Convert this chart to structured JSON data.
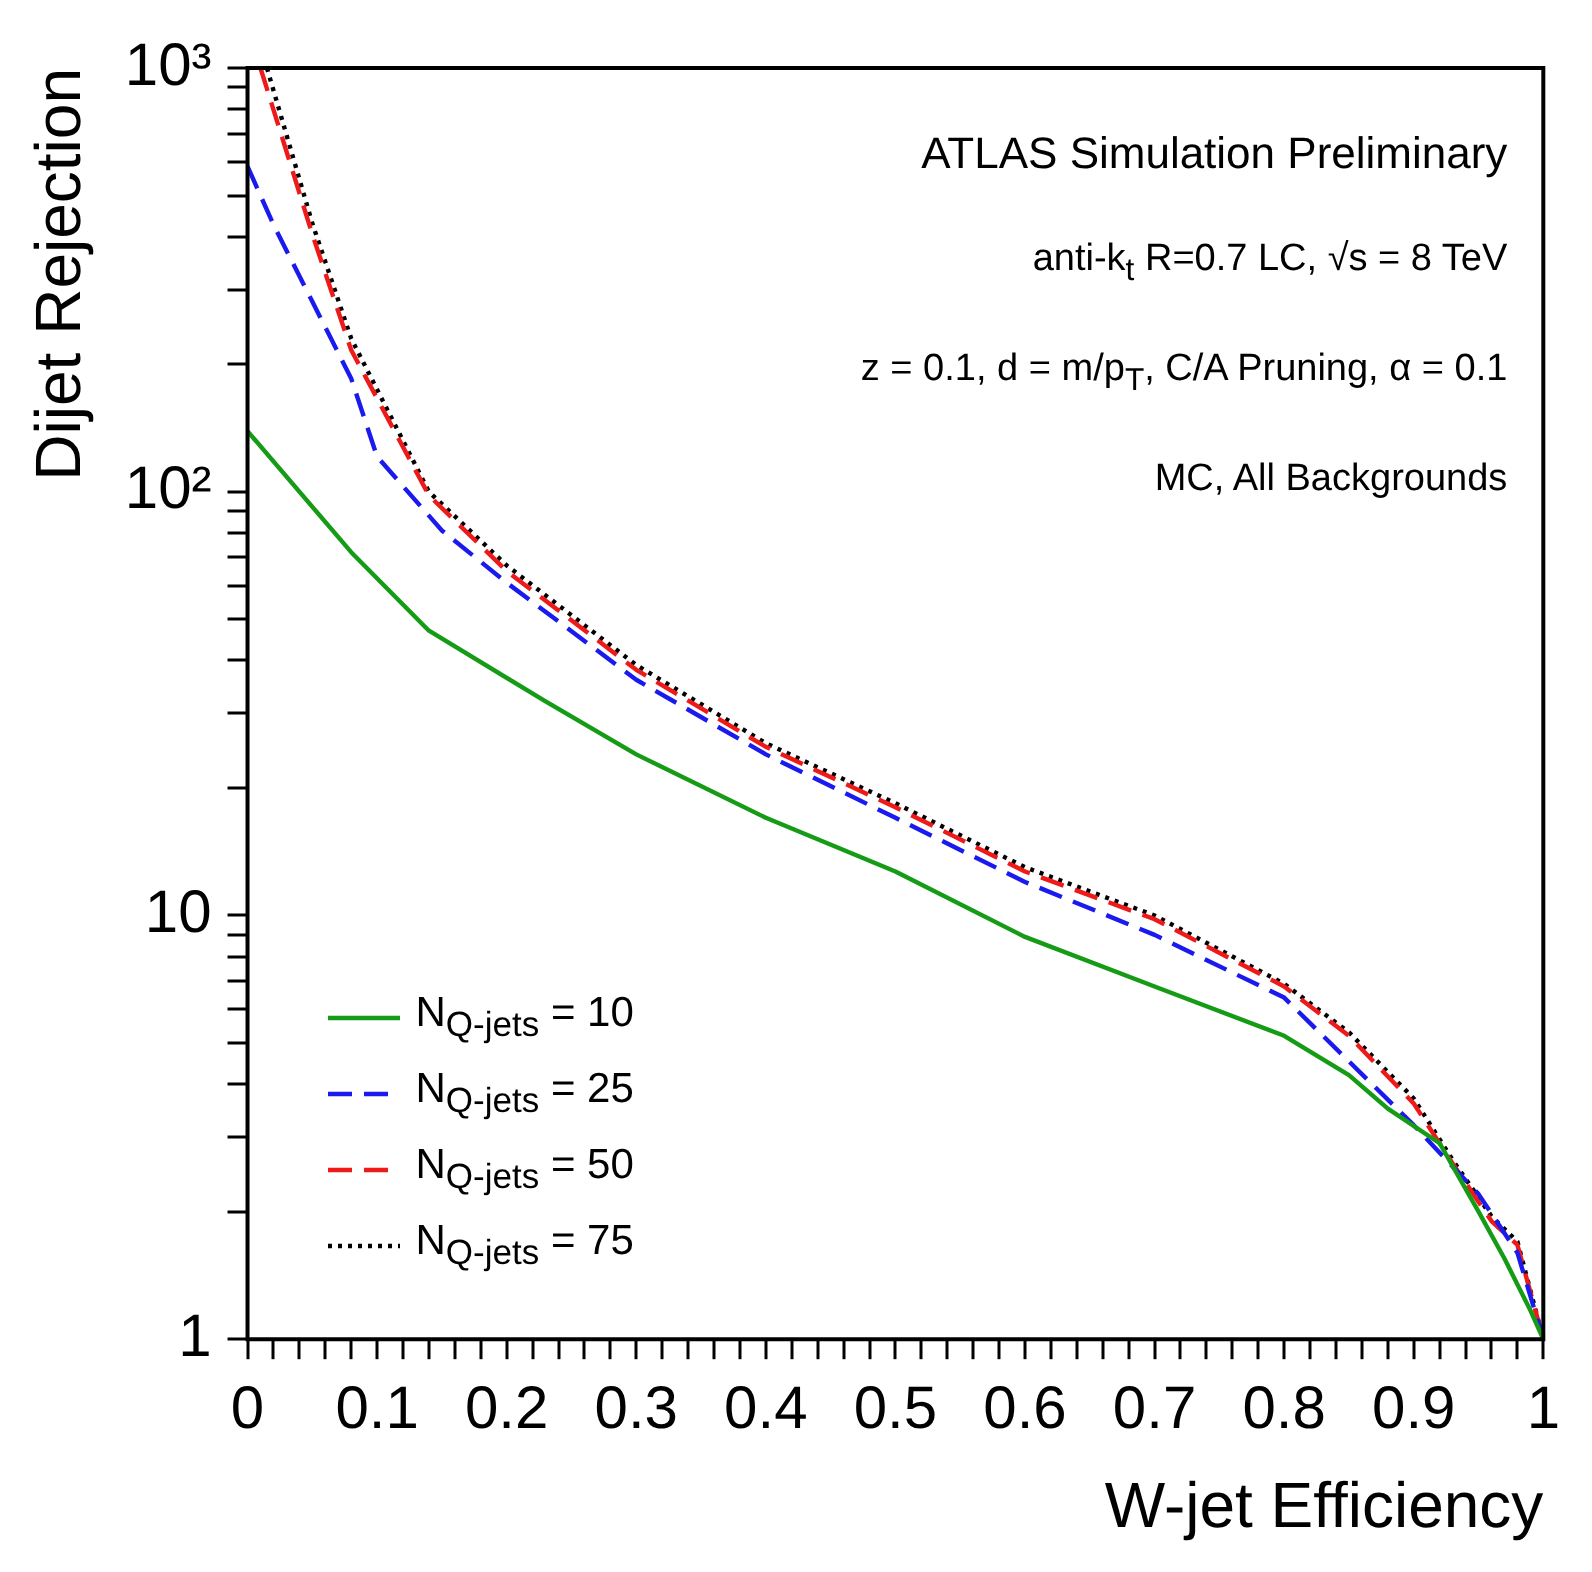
{
  "chart_data": {
    "type": "line",
    "xlabel": "W-jet Efficiency",
    "ylabel": "Dijet Rejection",
    "annotations": [
      "ATLAS Simulation Preliminary",
      "anti-k$_{t}$ R=0.7 LC, √s = 8 TeV",
      "z = 0.1, d = m/p$_{T}$, C/A Pruning, α = 0.1",
      "MC, All Backgrounds"
    ],
    "log": "y",
    "grid": false,
    "legend": "bottom left",
    "marker": "none",
    "xlim": [
      0,
      1
    ],
    "ylim": [
      1,
      1000
    ],
    "xticks": [
      0,
      {
        "value": 0.02,
        "label": null
      },
      {
        "value": 0.04,
        "label": null
      },
      {
        "value": 0.06,
        "label": null
      },
      {
        "value": 0.08,
        "label": null
      },
      0.1,
      {
        "value": 0.12,
        "label": null
      },
      {
        "value": 0.14,
        "label": null
      },
      {
        "value": 0.16,
        "label": null
      },
      {
        "value": 0.18,
        "label": null
      },
      0.2,
      {
        "value": 0.22,
        "label": null
      },
      {
        "value": 0.24,
        "label": null
      },
      {
        "value": 0.26,
        "label": null
      },
      {
        "value": 0.28,
        "label": null
      },
      0.3,
      {
        "value": 0.32,
        "label": null
      },
      {
        "value": 0.34,
        "label": null
      },
      {
        "value": 0.36,
        "label": null
      },
      {
        "value": 0.38,
        "label": null
      },
      0.4,
      {
        "value": 0.42,
        "label": null
      },
      {
        "value": 0.44,
        "label": null
      },
      {
        "value": 0.46,
        "label": null
      },
      {
        "value": 0.48,
        "label": null
      },
      0.5,
      {
        "value": 0.52,
        "label": null
      },
      {
        "value": 0.54,
        "label": null
      },
      {
        "value": 0.56,
        "label": null
      },
      {
        "value": 0.58,
        "label": null
      },
      0.6,
      {
        "value": 0.62,
        "label": null
      },
      {
        "value": 0.64,
        "label": null
      },
      {
        "value": 0.66,
        "label": null
      },
      {
        "value": 0.68,
        "label": null
      },
      0.7,
      {
        "value": 0.72,
        "label": null
      },
      {
        "value": 0.74,
        "label": null
      },
      {
        "value": 0.76,
        "label": null
      },
      {
        "value": 0.78,
        "label": null
      },
      0.8,
      {
        "value": 0.82,
        "label": null
      },
      {
        "value": 0.84,
        "label": null
      },
      {
        "value": 0.86,
        "label": null
      },
      {
        "value": 0.88,
        "label": null
      },
      0.9,
      {
        "value": 0.92,
        "label": null
      },
      {
        "value": 0.94,
        "label": null
      },
      {
        "value": 0.96,
        "label": null
      },
      {
        "value": 0.98,
        "label": null
      },
      1
    ],
    "yticks": [
      1,
      {
        "value": 2,
        "label": null
      },
      {
        "value": 3,
        "label": null
      },
      {
        "value": 4,
        "label": null
      },
      {
        "value": 5,
        "label": null
      },
      {
        "value": 6,
        "label": null
      },
      {
        "value": 7,
        "label": null
      },
      {
        "value": 8,
        "label": null
      },
      {
        "value": 9,
        "label": null
      },
      10,
      {
        "value": 20,
        "label": null
      },
      {
        "value": 30,
        "label": null
      },
      {
        "value": 40,
        "label": null
      },
      {
        "value": 50,
        "label": null
      },
      {
        "value": 60,
        "label": null
      },
      {
        "value": 70,
        "label": null
      },
      {
        "value": 80,
        "label": null
      },
      {
        "value": 90,
        "label": null
      },
      {
        "value": 100,
        "label": "10²"
      },
      {
        "value": 200,
        "label": null
      },
      {
        "value": 300,
        "label": null
      },
      {
        "value": 400,
        "label": null
      },
      {
        "value": 500,
        "label": null
      },
      {
        "value": 600,
        "label": null
      },
      {
        "value": 700,
        "label": null
      },
      {
        "value": 800,
        "label": null
      },
      {
        "value": 900,
        "label": null
      },
      {
        "value": 1000,
        "label": "10³"
      }
    ],
    "series": [
      {
        "name": "N$_{Q-jets}$ = 10",
        "color": "#169b16",
        "line_style": "solid",
        "x": [
          0,
          0.08,
          0.14,
          0.23,
          0.3,
          0.4,
          0.5,
          0.6,
          0.7,
          0.8,
          0.85,
          0.88,
          0.92,
          0.95,
          0.97,
          0.99,
          1
        ],
        "values": [
          139,
          72,
          47,
          32,
          24,
          17,
          12.7,
          8.9,
          6.8,
          5.2,
          4.2,
          3.5,
          2.9,
          2.0,
          1.55,
          1.17,
          1
        ]
      },
      {
        "name": "N$_{Q-jets}$ = 25",
        "color": "#1a1aee",
        "line_style": "dashed",
        "x": [
          0,
          0.02,
          0.05,
          0.08,
          0.1,
          0.15,
          0.2,
          0.3,
          0.4,
          0.5,
          0.6,
          0.7,
          0.8,
          0.9,
          0.95,
          0.98,
          1
        ],
        "values": [
          586,
          427,
          281,
          185,
          121,
          81,
          61,
          36,
          24,
          17,
          12,
          9,
          6.4,
          3.2,
          2.2,
          1.6,
          1
        ]
      },
      {
        "name": "N$_{Q-jets}$ = 50",
        "color": "#ee1a1a",
        "line_style": "dashed",
        "x": [
          0.01,
          0.05,
          0.08,
          0.14,
          0.2,
          0.3,
          0.4,
          0.5,
          0.6,
          0.7,
          0.8,
          0.85,
          0.9,
          0.93,
          0.96,
          0.98,
          1
        ],
        "values": [
          1000,
          405,
          216,
          98,
          65,
          38,
          25,
          18,
          12.7,
          9.8,
          6.8,
          5.2,
          3.6,
          2.6,
          1.9,
          1.67,
          1
        ]
      },
      {
        "name": "N$_{Q-jets}$ = 75",
        "color": "#000000",
        "line_style": "dotted",
        "x": [
          0.015,
          0.05,
          0.08,
          0.14,
          0.2,
          0.3,
          0.4,
          0.5,
          0.6,
          0.7,
          0.8,
          0.85,
          0.9,
          0.93,
          0.96,
          0.98,
          1
        ],
        "values": [
          1000,
          430,
          230,
          100,
          67,
          39,
          25.5,
          18.4,
          13,
          10,
          6.9,
          5.3,
          3.7,
          2.65,
          1.95,
          1.7,
          1
        ]
      }
    ]
  }
}
